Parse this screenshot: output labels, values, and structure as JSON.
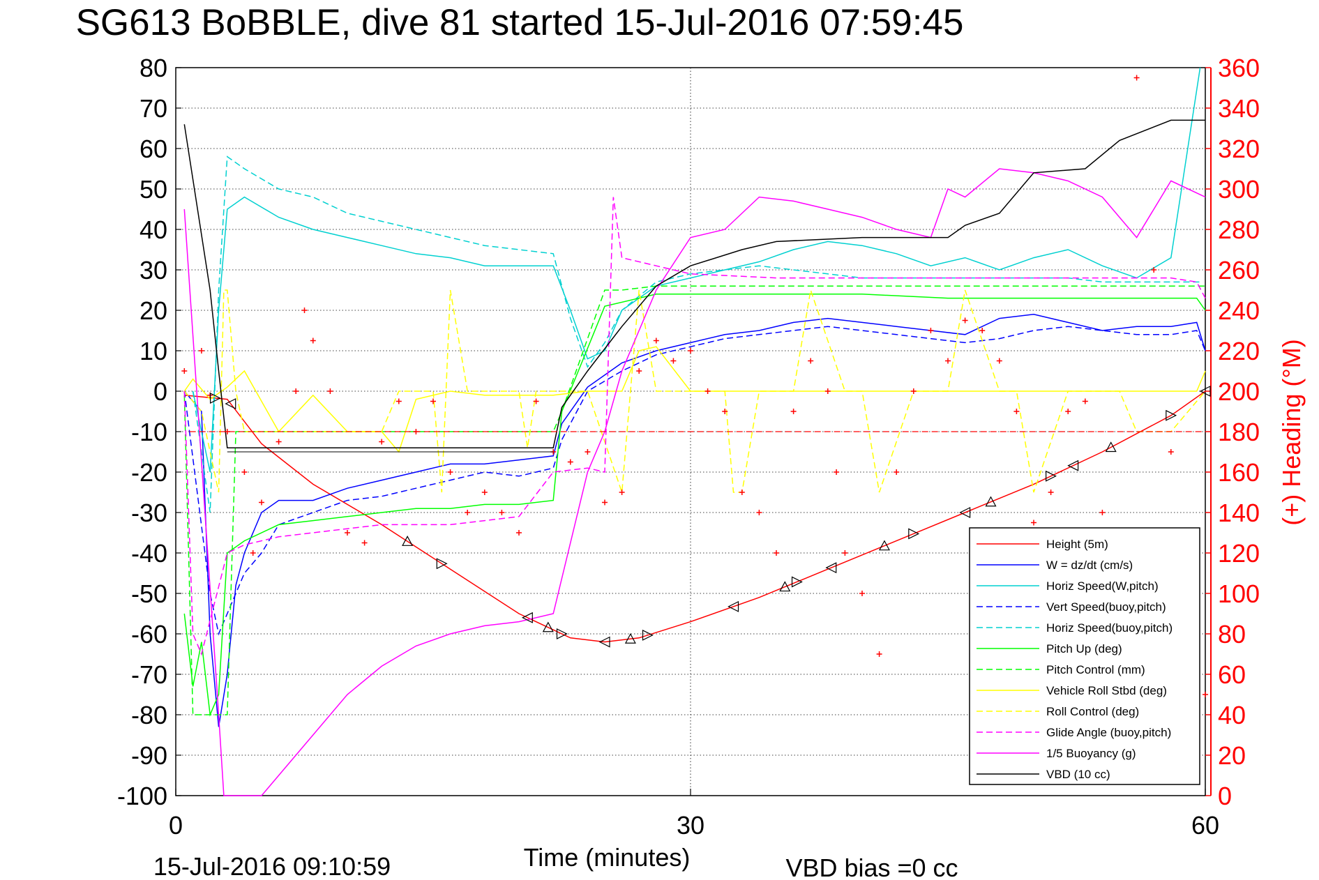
{
  "chart_data": {
    "type": "line",
    "title": "SG613 BoBBLE, dive 81 started 15-Jul-2016 07:59:45",
    "xlabel": "Time (minutes)",
    "footer_left": "15-Jul-2016 09:10:59",
    "footer_right": "VBD bias =0 cc",
    "xlim": [
      0,
      60
    ],
    "ylim": [
      -100,
      80
    ],
    "y2lim": [
      0,
      360
    ],
    "y2label": "(+) Heading (°M)",
    "y2color": "#ff0000",
    "x_ticks": [
      "0",
      "30",
      "60"
    ],
    "y_ticks": [
      "80",
      "70",
      "60",
      "50",
      "40",
      "30",
      "20",
      "10",
      "0",
      "-10",
      "-20",
      "-30",
      "-40",
      "-50",
      "-60",
      "-70",
      "-80",
      "-90",
      "-100"
    ],
    "y2_ticks": [
      "360",
      "340",
      "320",
      "300",
      "280",
      "260",
      "240",
      "220",
      "200",
      "180",
      "160",
      "140",
      "120",
      "100",
      "80",
      "60",
      "40",
      "20",
      "0"
    ],
    "grid": true,
    "legend_position": "bottom-right",
    "series": [
      {
        "name": "Height (5m)",
        "color": "#ff0000",
        "dash": "solid",
        "x": [
          0.5,
          3,
          5,
          8,
          12,
          16,
          20,
          23,
          25,
          27,
          30,
          34,
          38,
          42,
          46,
          50,
          54,
          58,
          60
        ],
        "y": [
          -1,
          -2,
          -13,
          -23,
          -33,
          -44,
          -55,
          -61,
          -62,
          -61,
          -57,
          -51,
          -44,
          -37,
          -30,
          -23,
          -15,
          -6,
          0
        ]
      },
      {
        "name": "W = dz/dt (cm/s)",
        "color": "#0000ff",
        "dash": "solid",
        "x": [
          0.5,
          1.5,
          2,
          2.5,
          3,
          3.5,
          4,
          5,
          6,
          8,
          10,
          12,
          14,
          16,
          18,
          20,
          22,
          22.5,
          24,
          26,
          28,
          30,
          32,
          34,
          36,
          38,
          40,
          42,
          44,
          46,
          48,
          50,
          52,
          54,
          56,
          58,
          59.5,
          60
        ],
        "y": [
          0,
          -5,
          -60,
          -83,
          -70,
          -48,
          -40,
          -30,
          -27,
          -27,
          -24,
          -22,
          -20,
          -18,
          -18,
          -17,
          -16,
          -8,
          1,
          7,
          10,
          12,
          14,
          15,
          17,
          18,
          17,
          16,
          15,
          14,
          18,
          19,
          17,
          15,
          16,
          16,
          17,
          10
        ]
      },
      {
        "name": "Horiz Speed(W,pitch)",
        "color": "#00d0d0",
        "dash": "solid",
        "x": [
          1,
          2,
          2.5,
          3,
          4,
          6,
          8,
          10,
          12,
          14,
          16,
          18,
          20,
          22,
          23,
          24,
          25,
          26,
          28,
          30,
          32,
          34,
          36,
          38,
          40,
          42,
          44,
          46,
          48,
          50,
          52,
          54,
          56,
          58,
          59.7
        ],
        "y": [
          0,
          -20,
          20,
          45,
          48,
          43,
          40,
          38,
          36,
          34,
          33,
          31,
          31,
          31,
          20,
          8,
          10,
          20,
          26,
          28,
          30,
          32,
          35,
          37,
          36,
          34,
          31,
          33,
          30,
          33,
          35,
          31,
          28,
          33,
          80
        ]
      },
      {
        "name": "Vert Speed(buoy,pitch)",
        "color": "#0000ff",
        "dash": "dashed",
        "x": [
          0.5,
          2,
          2.5,
          3,
          4,
          5,
          6,
          8,
          10,
          12,
          14,
          16,
          18,
          20,
          22,
          22.5,
          24,
          26,
          28,
          30,
          32,
          34,
          36,
          38,
          40,
          42,
          44,
          46,
          48,
          50,
          52,
          54,
          56,
          58,
          59.5,
          60
        ],
        "y": [
          0,
          -50,
          -60,
          -55,
          -45,
          -40,
          -33,
          -30,
          -27,
          -26,
          -24,
          -22,
          -20,
          -21,
          -19,
          -12,
          0,
          5,
          9,
          11,
          13,
          14,
          15,
          16,
          15,
          14,
          13,
          12,
          13,
          15,
          16,
          15,
          14,
          14,
          15,
          10
        ]
      },
      {
        "name": "Horiz Speed(buoy,pitch)",
        "color": "#00d0d0",
        "dash": "dashed",
        "x": [
          1,
          2,
          2.5,
          3,
          4,
          6,
          8,
          10,
          12,
          14,
          16,
          18,
          20,
          22,
          23,
          24,
          25,
          26,
          28,
          30,
          32,
          34,
          36,
          38,
          40,
          42,
          44,
          46,
          48,
          50,
          52,
          54,
          56,
          58,
          59.7
        ],
        "y": [
          0,
          -30,
          25,
          58,
          55,
          50,
          48,
          44,
          42,
          40,
          38,
          36,
          35,
          34,
          18,
          6,
          12,
          20,
          27,
          29,
          30,
          31,
          30,
          29,
          28,
          28,
          28,
          28,
          28,
          28,
          28,
          27,
          27,
          27,
          27
        ]
      },
      {
        "name": "Pitch Up (deg)",
        "color": "#00ff00",
        "dash": "solid",
        "x": [
          0.5,
          1,
          1.5,
          2,
          2.5,
          3,
          4,
          6,
          8,
          10,
          12,
          14,
          16,
          18,
          20,
          22,
          22.5,
          25,
          28,
          30,
          35,
          40,
          45,
          50,
          55,
          59.5,
          60
        ],
        "y": [
          -55,
          -73,
          -62,
          -80,
          -75,
          -40,
          -37,
          -33,
          -32,
          -31,
          -30,
          -29,
          -29,
          -28,
          -28,
          -27,
          -5,
          21,
          24,
          24,
          24,
          24,
          23,
          23,
          23,
          23,
          20
        ]
      },
      {
        "name": "Pitch Control (mm)",
        "color": "#00ff00",
        "dash": "dashed",
        "x": [
          0.5,
          1,
          1.5,
          3,
          3.5,
          8,
          14,
          20,
          22,
          22.5,
          25,
          26,
          28,
          30,
          40,
          50,
          58,
          60
        ],
        "y": [
          -1,
          -80,
          -80,
          -80,
          -10,
          -10,
          -10,
          -10,
          -10,
          -5,
          25,
          25,
          26,
          26,
          26,
          26,
          26,
          26
        ]
      },
      {
        "name": "Vehicle Roll Stbd (deg)",
        "color": "#ffff00",
        "dash": "solid",
        "x": [
          0.5,
          1,
          2,
          3,
          4,
          6,
          8,
          10,
          12,
          13,
          14,
          16,
          18,
          20,
          22,
          24,
          26,
          27,
          28,
          30,
          32,
          34,
          40,
          46,
          50,
          52,
          56,
          58,
          59.5,
          60
        ],
        "y": [
          0,
          3,
          -2,
          1,
          5,
          -10,
          -1,
          -10,
          -10,
          -15,
          -2,
          0,
          -1,
          -1,
          -1,
          0,
          0,
          10,
          11,
          0,
          0,
          0,
          0,
          0,
          0,
          0,
          0,
          0,
          0,
          5
        ]
      },
      {
        "name": "Roll Control (deg)",
        "color": "#ffff00",
        "dash": "dashed",
        "x": [
          0.5,
          1.5,
          2.5,
          2.8,
          3,
          3.5,
          4,
          5,
          7,
          9,
          10,
          11,
          12,
          13,
          15,
          15.5,
          16,
          17,
          18,
          20,
          20.5,
          21,
          22,
          24,
          26,
          27,
          28,
          30,
          32,
          32.5,
          33,
          34,
          35,
          36,
          37,
          39,
          40,
          41,
          43,
          45,
          46,
          48,
          49,
          50,
          52,
          55,
          56,
          58,
          60
        ],
        "y": [
          0,
          -5,
          -25,
          25,
          25,
          0,
          -10,
          -10,
          -10,
          -10,
          -10,
          -10,
          -10,
          0,
          0,
          -25,
          25,
          0,
          0,
          0,
          -14,
          0,
          0,
          0,
          -25,
          25,
          0,
          0,
          0,
          -25,
          -25,
          0,
          0,
          0,
          25,
          0,
          0,
          -25,
          0,
          0,
          25,
          0,
          0,
          -25,
          0,
          0,
          -10,
          -10,
          0
        ]
      },
      {
        "name": "Glide Angle (buoy,pitch)",
        "color": "#ff00ff",
        "dash": "dashed",
        "x": [
          0.5,
          1,
          1.5,
          3,
          4,
          6,
          8,
          10,
          12,
          14,
          16,
          18,
          20,
          22,
          24,
          25,
          25.5,
          26,
          28,
          30,
          35,
          40,
          45,
          50,
          55,
          58,
          59.5,
          60
        ],
        "y": [
          0,
          -60,
          -65,
          -40,
          -38,
          -36,
          -35,
          -34,
          -33,
          -33,
          -33,
          -32,
          -31,
          -20,
          -19,
          -20,
          48,
          33,
          31,
          29,
          28,
          28,
          28,
          28,
          28,
          28,
          27,
          23
        ]
      },
      {
        "name": "1/5 Buoyancy (g)",
        "color": "#ff00ff",
        "dash": "solid",
        "x": [
          0.5,
          2.5,
          2.8,
          4,
          5,
          6,
          8,
          10,
          12,
          14,
          16,
          18,
          20,
          22,
          24,
          25,
          26,
          28,
          30,
          32,
          34,
          36,
          38,
          40,
          42,
          44,
          45,
          46,
          48,
          50,
          52,
          54,
          56,
          58,
          60
        ],
        "y": [
          45,
          -80,
          -100,
          -100,
          -100,
          -95,
          -85,
          -75,
          -68,
          -63,
          -60,
          -58,
          -57,
          -55,
          -20,
          -10,
          5,
          25,
          38,
          40,
          48,
          47,
          45,
          43,
          40,
          38,
          50,
          48,
          55,
          54,
          52,
          48,
          38,
          52,
          48
        ]
      },
      {
        "name": "VBD (10 cc)",
        "color": "#000000",
        "dash": "solid",
        "x": [
          0.5,
          2,
          2.5,
          3,
          10,
          15,
          20,
          22,
          22.5,
          24,
          26,
          28,
          30,
          33,
          35,
          40,
          45,
          46,
          48,
          50,
          53,
          55,
          58,
          60
        ],
        "y": [
          66,
          25,
          5,
          -14,
          -14,
          -14,
          -14,
          -14,
          -4,
          5,
          16,
          26,
          31,
          35,
          37,
          38,
          38,
          41,
          44,
          54,
          55,
          62,
          67,
          67
        ]
      },
      {
        "name": "(+) Heading (°M)",
        "color": "#ff0000",
        "dash": "markers",
        "axis": "right",
        "x": [
          0.5,
          1.5,
          2,
          3,
          4,
          4.5,
          5,
          6,
          7,
          7.5,
          8,
          9,
          10,
          11,
          12,
          13,
          14,
          15,
          16,
          17,
          18,
          19,
          20,
          21,
          22,
          23,
          24,
          25,
          26,
          27,
          28,
          29,
          30,
          31,
          32,
          33,
          34,
          35,
          36,
          37,
          38,
          38.5,
          39,
          40,
          41,
          42,
          43,
          44,
          45,
          46,
          47,
          48,
          49,
          50,
          51,
          52,
          53,
          54,
          55,
          56,
          57,
          58,
          59,
          60
        ],
        "y": [
          210,
          220,
          198,
          180,
          160,
          120,
          145,
          175,
          200,
          240,
          225,
          200,
          130,
          125,
          175,
          195,
          180,
          195,
          160,
          140,
          150,
          140,
          130,
          195,
          170,
          165,
          170,
          145,
          150,
          210,
          225,
          215,
          220,
          200,
          190,
          150,
          140,
          120,
          190,
          215,
          200,
          160,
          120,
          100,
          70,
          160,
          200,
          230,
          215,
          235,
          230,
          215,
          190,
          135,
          150,
          190,
          195,
          140,
          110,
          355,
          260,
          170,
          40,
          50
        ]
      }
    ]
  }
}
